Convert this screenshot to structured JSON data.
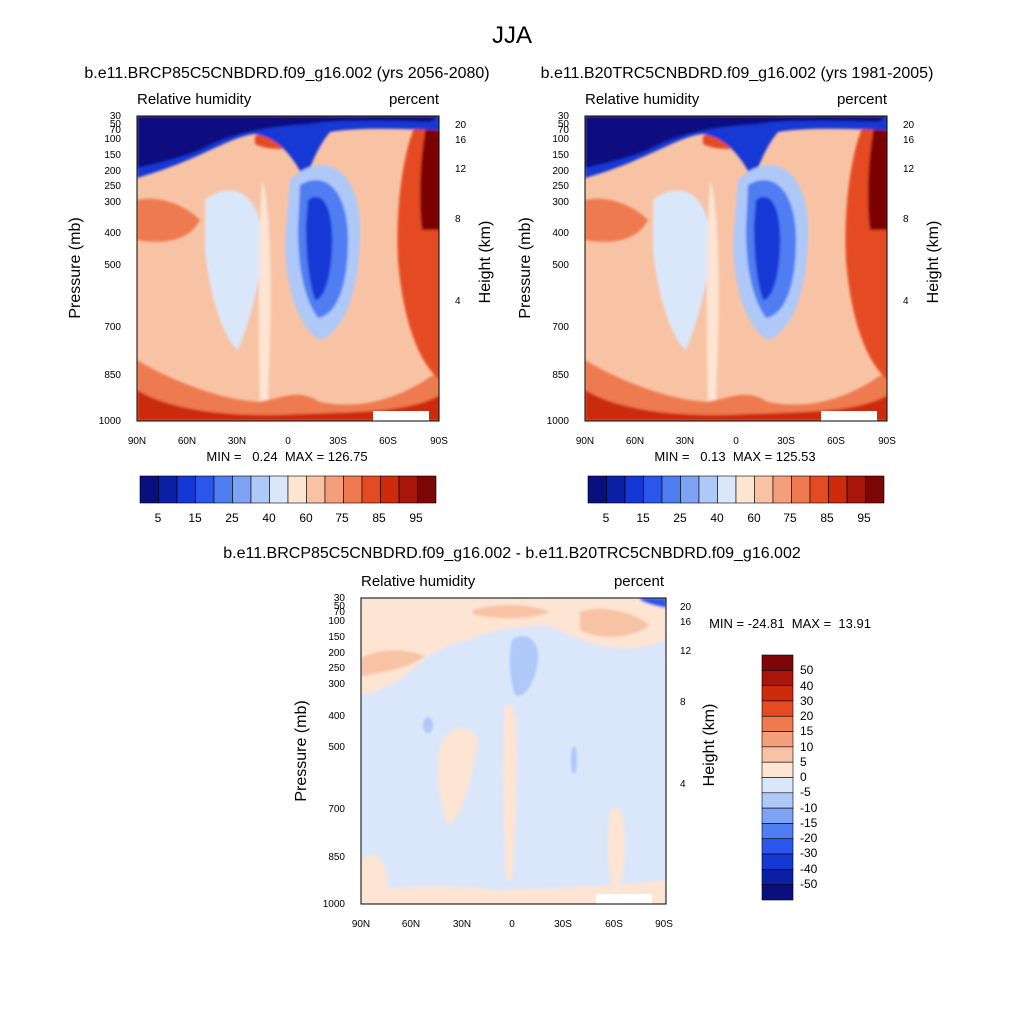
{
  "figure": {
    "title": "JJA"
  },
  "colors": {
    "abs": [
      "#0a0f7f",
      "#0b1fa6",
      "#1537d4",
      "#2b56eb",
      "#4f7df2",
      "#7ea3f5",
      "#aec8f8",
      "#dae7fb",
      "#fde4d3",
      "#f8c3a5",
      "#f3a07a",
      "#ee7a4f",
      "#e54b22",
      "#cc2b0c",
      "#a8150b",
      "#7d0606"
    ],
    "diff": [
      "#0a0f7f",
      "#0b1fa6",
      "#1537d4",
      "#2b56eb",
      "#4f7df2",
      "#7ea3f5",
      "#aec8f8",
      "#dae7fb",
      "#fde4d3",
      "#f8c3a5",
      "#f3a07a",
      "#ee7a4f",
      "#e54b22",
      "#cc2b0c",
      "#a8150b",
      "#7d0606"
    ]
  },
  "chart_data": [
    {
      "type": "contour",
      "title": "b.e11.BRCP85C5CNBDRD.f09_g16.002 (yrs 2056-2080)",
      "left_label": "Relative humidity",
      "right_label": "percent",
      "ylabel": "Pressure (mb)",
      "y2label": "Height (km)",
      "x_ticks": [
        "90N",
        "60N",
        "30N",
        "0",
        "30S",
        "60S",
        "90S"
      ],
      "y_ticks": [
        "30",
        "50",
        "70",
        "100",
        "150",
        "200",
        "250",
        "300",
        "400",
        "500",
        "700",
        "850",
        "1000"
      ],
      "y2_ticks": [
        "20",
        "16",
        "12",
        "8",
        "4"
      ],
      "stats": "MIN =   0.24  MAX = 126.75",
      "colorbar_labels": [
        "5",
        "15",
        "25",
        "40",
        "60",
        "75",
        "85",
        "95"
      ]
    },
    {
      "type": "contour",
      "title": "b.e11.B20TRC5CNBDRD.f09_g16.002 (yrs 1981-2005)",
      "left_label": "Relative humidity",
      "right_label": "percent",
      "ylabel": "Pressure (mb)",
      "y2label": "Height (km)",
      "x_ticks": [
        "90N",
        "60N",
        "30N",
        "0",
        "30S",
        "60S",
        "90S"
      ],
      "y_ticks": [
        "30",
        "50",
        "70",
        "100",
        "150",
        "200",
        "250",
        "300",
        "400",
        "500",
        "700",
        "850",
        "1000"
      ],
      "y2_ticks": [
        "20",
        "16",
        "12",
        "8",
        "4"
      ],
      "stats": "MIN =   0.13  MAX = 125.53",
      "colorbar_labels": [
        "5",
        "15",
        "25",
        "40",
        "60",
        "75",
        "85",
        "95"
      ]
    },
    {
      "type": "contour",
      "title": "b.e11.BRCP85C5CNBDRD.f09_g16.002 - b.e11.B20TRC5CNBDRD.f09_g16.002",
      "left_label": "Relative humidity",
      "right_label": "percent",
      "ylabel": "Pressure (mb)",
      "y2label": "Height (km)",
      "x_ticks": [
        "90N",
        "60N",
        "30N",
        "0",
        "30S",
        "60S",
        "90S"
      ],
      "y_ticks": [
        "30",
        "50",
        "70",
        "100",
        "150",
        "200",
        "250",
        "300",
        "400",
        "500",
        "700",
        "850",
        "1000"
      ],
      "y2_ticks": [
        "20",
        "16",
        "12",
        "8",
        "4"
      ],
      "stats": "MIN = -24.81  MAX =  13.91",
      "colorbar_labels": [
        "50",
        "40",
        "30",
        "20",
        "15",
        "10",
        "5",
        "0",
        "-5",
        "-10",
        "-15",
        "-20",
        "-30",
        "-40",
        "-50"
      ]
    }
  ]
}
